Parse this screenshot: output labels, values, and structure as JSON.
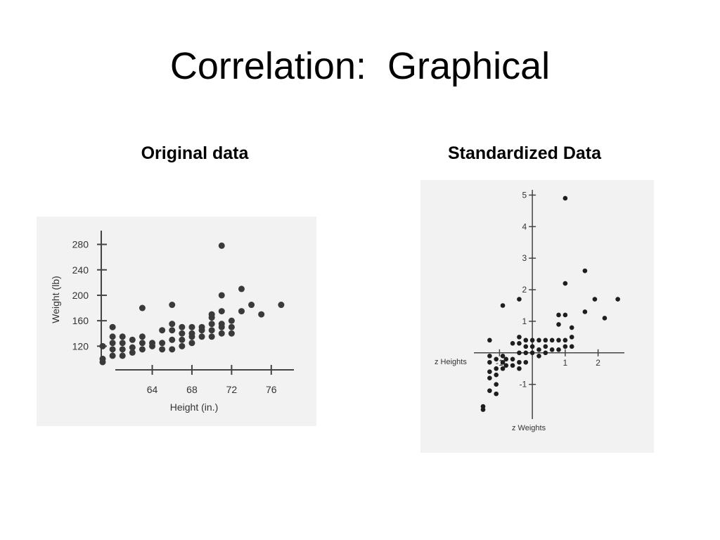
{
  "slide": {
    "title": "Correlation:  Graphical",
    "left_heading": "Original data",
    "right_heading": "Standardized Data"
  },
  "chart_data": [
    {
      "type": "scatter",
      "title": "",
      "xlabel": "Height (in.)",
      "ylabel": "Weight (lb)",
      "xlim": [
        59,
        78
      ],
      "ylim": [
        85,
        295
      ],
      "xticks": [
        64,
        68,
        72,
        76
      ],
      "yticks": [
        120,
        160,
        200,
        240,
        280
      ],
      "grid": false,
      "points": [
        [
          59,
          100
        ],
        [
          59,
          95
        ],
        [
          59,
          120
        ],
        [
          60,
          105
        ],
        [
          60,
          115
        ],
        [
          60,
          125
        ],
        [
          60,
          135
        ],
        [
          60,
          150
        ],
        [
          61,
          105
        ],
        [
          61,
          115
        ],
        [
          61,
          125
        ],
        [
          61,
          135
        ],
        [
          62,
          110
        ],
        [
          62,
          118
        ],
        [
          62,
          130
        ],
        [
          63,
          115
        ],
        [
          63,
          125
        ],
        [
          63,
          135
        ],
        [
          63,
          180
        ],
        [
          64,
          120
        ],
        [
          64,
          125
        ],
        [
          65,
          115
        ],
        [
          65,
          125
        ],
        [
          65,
          145
        ],
        [
          66,
          115
        ],
        [
          66,
          130
        ],
        [
          66,
          145
        ],
        [
          66,
          155
        ],
        [
          66,
          185
        ],
        [
          67,
          120
        ],
        [
          67,
          130
        ],
        [
          67,
          140
        ],
        [
          67,
          150
        ],
        [
          68,
          125
        ],
        [
          68,
          135
        ],
        [
          68,
          140
        ],
        [
          68,
          150
        ],
        [
          69,
          135
        ],
        [
          69,
          145
        ],
        [
          69,
          150
        ],
        [
          70,
          135
        ],
        [
          70,
          145
        ],
        [
          70,
          155
        ],
        [
          70,
          165
        ],
        [
          70,
          170
        ],
        [
          71,
          140
        ],
        [
          71,
          150
        ],
        [
          71,
          155
        ],
        [
          71,
          175
        ],
        [
          71,
          200
        ],
        [
          71,
          278
        ],
        [
          72,
          140
        ],
        [
          72,
          150
        ],
        [
          72,
          160
        ],
        [
          73,
          175
        ],
        [
          73,
          210
        ],
        [
          74,
          185
        ],
        [
          75,
          170
        ],
        [
          77,
          185
        ]
      ]
    },
    {
      "type": "scatter",
      "title": "",
      "xlabel": "z Heights",
      "ylabel": "z Weights",
      "xlim": [
        -1.8,
        2.8
      ],
      "ylim": [
        -2.3,
        5.3
      ],
      "xticks": [
        -1,
        1,
        2
      ],
      "yticks": [
        -1,
        1,
        2,
        3,
        4,
        5
      ],
      "grid": false,
      "points": [
        [
          -1.5,
          -1.7
        ],
        [
          -1.5,
          -1.8
        ],
        [
          -1.3,
          -0.8
        ],
        [
          -1.3,
          -0.6
        ],
        [
          -1.3,
          -0.3
        ],
        [
          -1.3,
          -0.1
        ],
        [
          -1.3,
          0.4
        ],
        [
          -1.3,
          -1.2
        ],
        [
          -1.1,
          -1.3
        ],
        [
          -1.1,
          -1.0
        ],
        [
          -1.1,
          -0.7
        ],
        [
          -1.1,
          -0.5
        ],
        [
          -1.1,
          -0.2
        ],
        [
          -0.9,
          -0.5
        ],
        [
          -0.9,
          -0.3
        ],
        [
          -0.9,
          -0.1
        ],
        [
          -0.9,
          1.5
        ],
        [
          -0.8,
          -0.4
        ],
        [
          -0.8,
          -0.2
        ],
        [
          -0.6,
          -0.4
        ],
        [
          -0.6,
          -0.2
        ],
        [
          -0.6,
          0.3
        ],
        [
          -0.4,
          -0.5
        ],
        [
          -0.4,
          -0.3
        ],
        [
          -0.4,
          0.0
        ],
        [
          -0.4,
          0.3
        ],
        [
          -0.4,
          0.5
        ],
        [
          -0.4,
          1.7
        ],
        [
          -0.2,
          -0.3
        ],
        [
          -0.2,
          0.0
        ],
        [
          -0.2,
          0.2
        ],
        [
          -0.2,
          0.4
        ],
        [
          0.0,
          0.0
        ],
        [
          0.0,
          0.2
        ],
        [
          0.0,
          0.4
        ],
        [
          0.2,
          -0.1
        ],
        [
          0.2,
          0.1
        ],
        [
          0.2,
          0.4
        ],
        [
          0.4,
          0.0
        ],
        [
          0.4,
          0.2
        ],
        [
          0.4,
          0.4
        ],
        [
          0.6,
          0.1
        ],
        [
          0.6,
          0.4
        ],
        [
          0.8,
          0.1
        ],
        [
          0.8,
          0.4
        ],
        [
          0.8,
          0.9
        ],
        [
          0.8,
          1.2
        ],
        [
          1.0,
          0.2
        ],
        [
          1.0,
          0.4
        ],
        [
          1.0,
          1.2
        ],
        [
          1.0,
          2.2
        ],
        [
          1.0,
          4.9
        ],
        [
          1.2,
          0.2
        ],
        [
          1.2,
          0.5
        ],
        [
          1.2,
          0.8
        ],
        [
          1.6,
          1.3
        ],
        [
          1.6,
          2.6
        ],
        [
          1.9,
          1.7
        ],
        [
          2.2,
          1.1
        ],
        [
          2.6,
          1.7
        ]
      ]
    }
  ]
}
